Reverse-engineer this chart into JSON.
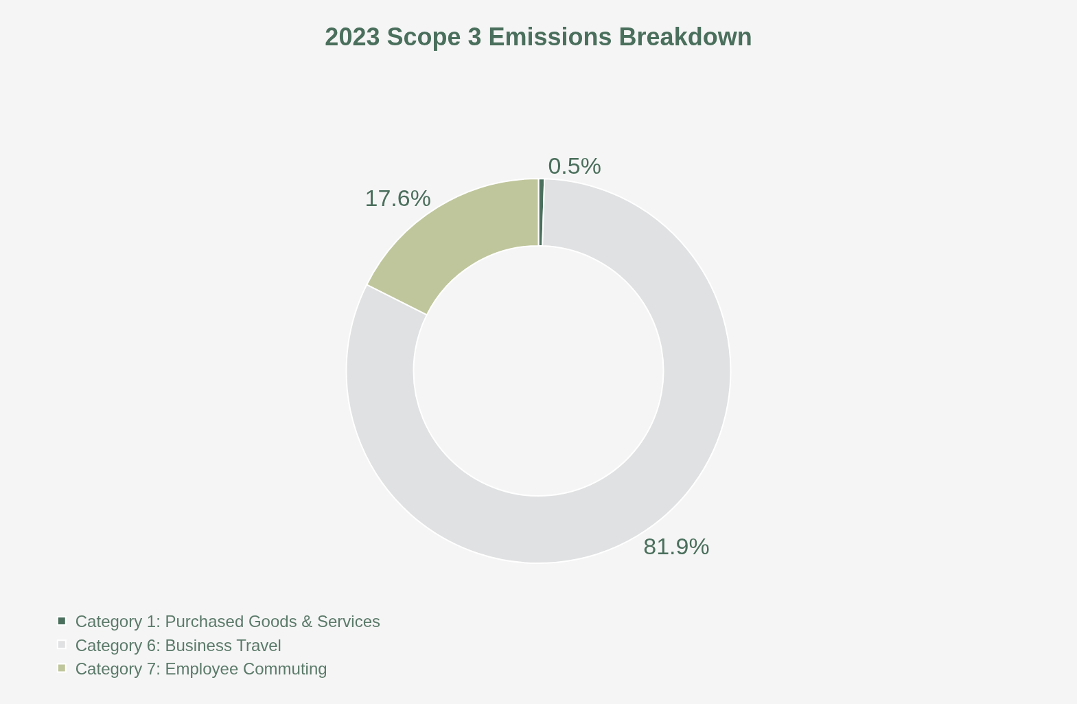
{
  "chart_data": {
    "type": "donut",
    "title": "2023 Scope 3 Emissions Breakdown",
    "categories": [
      "Category 1: Purchased Goods & Services",
      "Category 6: Business Travel",
      "Category 7: Employee Commuting"
    ],
    "values": [
      0.5,
      81.9,
      17.6
    ],
    "colors": [
      "#4a6f5c",
      "#e0e1e2",
      "#c0c69c"
    ],
    "value_labels": [
      "0.5%",
      "81.9%",
      "17.6%"
    ],
    "legend": "bottom left"
  }
}
